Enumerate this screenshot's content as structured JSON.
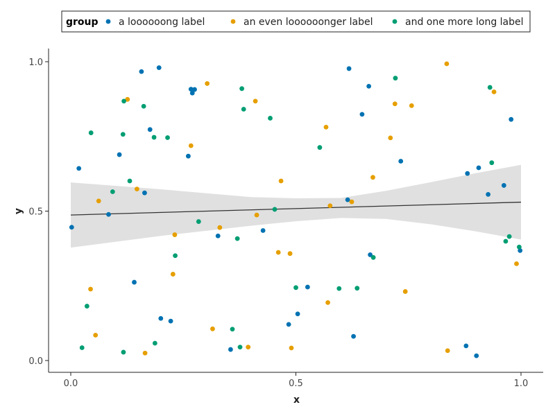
{
  "chart_data": {
    "type": "scatter",
    "title": "",
    "xlabel": "x",
    "ylabel": "y",
    "xlim": [
      -0.045,
      1.045
    ],
    "ylim": [
      -0.04,
      1.04
    ],
    "xticks": [
      0.0,
      0.5,
      1.0
    ],
    "yticks": [
      0.0,
      0.5,
      1.0
    ],
    "xtick_labels": [
      "0.0",
      "0.5",
      "1.0"
    ],
    "ytick_labels": [
      "0.0",
      "0.5",
      "1.0"
    ],
    "grid": false,
    "legend": {
      "title": "group",
      "placement": "top"
    },
    "fit": {
      "type": "linear",
      "color": "#333333",
      "band_color": "#e0e0e0",
      "line": [
        [
          0.0,
          0.487
        ],
        [
          1.0,
          0.53
        ]
      ],
      "band": [
        [
          0.0,
          0.378,
          0.596
        ],
        [
          0.2,
          0.417,
          0.573
        ],
        [
          0.4,
          0.451,
          0.547
        ],
        [
          0.5,
          0.466,
          0.543
        ],
        [
          0.6,
          0.477,
          0.544
        ],
        [
          0.7,
          0.474,
          0.568
        ],
        [
          0.8,
          0.456,
          0.597
        ],
        [
          0.9,
          0.432,
          0.627
        ],
        [
          1.0,
          0.405,
          0.655
        ]
      ]
    },
    "series": [
      {
        "name": "a loooooong label",
        "color": "#0072b2",
        "points": [
          [
            0.002,
            0.446
          ],
          [
            0.018,
            0.643
          ],
          [
            0.084,
            0.489
          ],
          [
            0.108,
            0.689
          ],
          [
            0.141,
            0.262
          ],
          [
            0.157,
            0.967
          ],
          [
            0.164,
            0.561
          ],
          [
            0.176,
            0.773
          ],
          [
            0.196,
            0.98
          ],
          [
            0.2,
            0.141
          ],
          [
            0.222,
            0.132
          ],
          [
            0.261,
            0.684
          ],
          [
            0.267,
            0.908
          ],
          [
            0.27,
            0.895
          ],
          [
            0.275,
            0.907
          ],
          [
            0.327,
            0.417
          ],
          [
            0.355,
            0.037
          ],
          [
            0.427,
            0.435
          ],
          [
            0.484,
            0.121
          ],
          [
            0.504,
            0.156
          ],
          [
            0.526,
            0.246
          ],
          [
            0.615,
            0.538
          ],
          [
            0.618,
            0.977
          ],
          [
            0.628,
            0.081
          ],
          [
            0.647,
            0.824
          ],
          [
            0.662,
            0.918
          ],
          [
            0.665,
            0.354
          ],
          [
            0.733,
            0.667
          ],
          [
            0.878,
            0.049
          ],
          [
            0.881,
            0.626
          ],
          [
            0.901,
            0.016
          ],
          [
            0.906,
            0.645
          ],
          [
            0.927,
            0.556
          ],
          [
            0.962,
            0.586
          ],
          [
            0.978,
            0.807
          ],
          [
            0.998,
            0.368
          ]
        ]
      },
      {
        "name": "an even loooooonger label",
        "color": "#e69f00",
        "points": [
          [
            0.044,
            0.239
          ],
          [
            0.055,
            0.085
          ],
          [
            0.062,
            0.534
          ],
          [
            0.126,
            0.874
          ],
          [
            0.147,
            0.574
          ],
          [
            0.165,
            0.025
          ],
          [
            0.227,
            0.289
          ],
          [
            0.231,
            0.421
          ],
          [
            0.267,
            0.719
          ],
          [
            0.303,
            0.927
          ],
          [
            0.315,
            0.106
          ],
          [
            0.331,
            0.445
          ],
          [
            0.394,
            0.045
          ],
          [
            0.41,
            0.868
          ],
          [
            0.413,
            0.487
          ],
          [
            0.461,
            0.362
          ],
          [
            0.467,
            0.601
          ],
          [
            0.487,
            0.358
          ],
          [
            0.49,
            0.042
          ],
          [
            0.567,
            0.781
          ],
          [
            0.571,
            0.194
          ],
          [
            0.576,
            0.518
          ],
          [
            0.624,
            0.531
          ],
          [
            0.671,
            0.613
          ],
          [
            0.71,
            0.745
          ],
          [
            0.72,
            0.859
          ],
          [
            0.743,
            0.231
          ],
          [
            0.757,
            0.853
          ],
          [
            0.835,
            0.993
          ],
          [
            0.837,
            0.033
          ],
          [
            0.94,
            0.899
          ],
          [
            0.99,
            0.324
          ]
        ]
      },
      {
        "name": "and one more long label",
        "color": "#009e73",
        "points": [
          [
            0.025,
            0.043
          ],
          [
            0.036,
            0.182
          ],
          [
            0.045,
            0.762
          ],
          [
            0.093,
            0.565
          ],
          [
            0.116,
            0.757
          ],
          [
            0.117,
            0.028
          ],
          [
            0.118,
            0.868
          ],
          [
            0.131,
            0.601
          ],
          [
            0.162,
            0.851
          ],
          [
            0.185,
            0.747
          ],
          [
            0.187,
            0.058
          ],
          [
            0.215,
            0.746
          ],
          [
            0.232,
            0.351
          ],
          [
            0.284,
            0.465
          ],
          [
            0.359,
            0.105
          ],
          [
            0.37,
            0.408
          ],
          [
            0.376,
            0.045
          ],
          [
            0.38,
            0.91
          ],
          [
            0.384,
            0.841
          ],
          [
            0.443,
            0.811
          ],
          [
            0.453,
            0.506
          ],
          [
            0.5,
            0.244
          ],
          [
            0.553,
            0.713
          ],
          [
            0.596,
            0.241
          ],
          [
            0.636,
            0.242
          ],
          [
            0.672,
            0.345
          ],
          [
            0.721,
            0.945
          ],
          [
            0.931,
            0.914
          ],
          [
            0.935,
            0.662
          ],
          [
            0.966,
            0.399
          ],
          [
            0.974,
            0.415
          ],
          [
            0.996,
            0.38
          ]
        ]
      }
    ]
  }
}
